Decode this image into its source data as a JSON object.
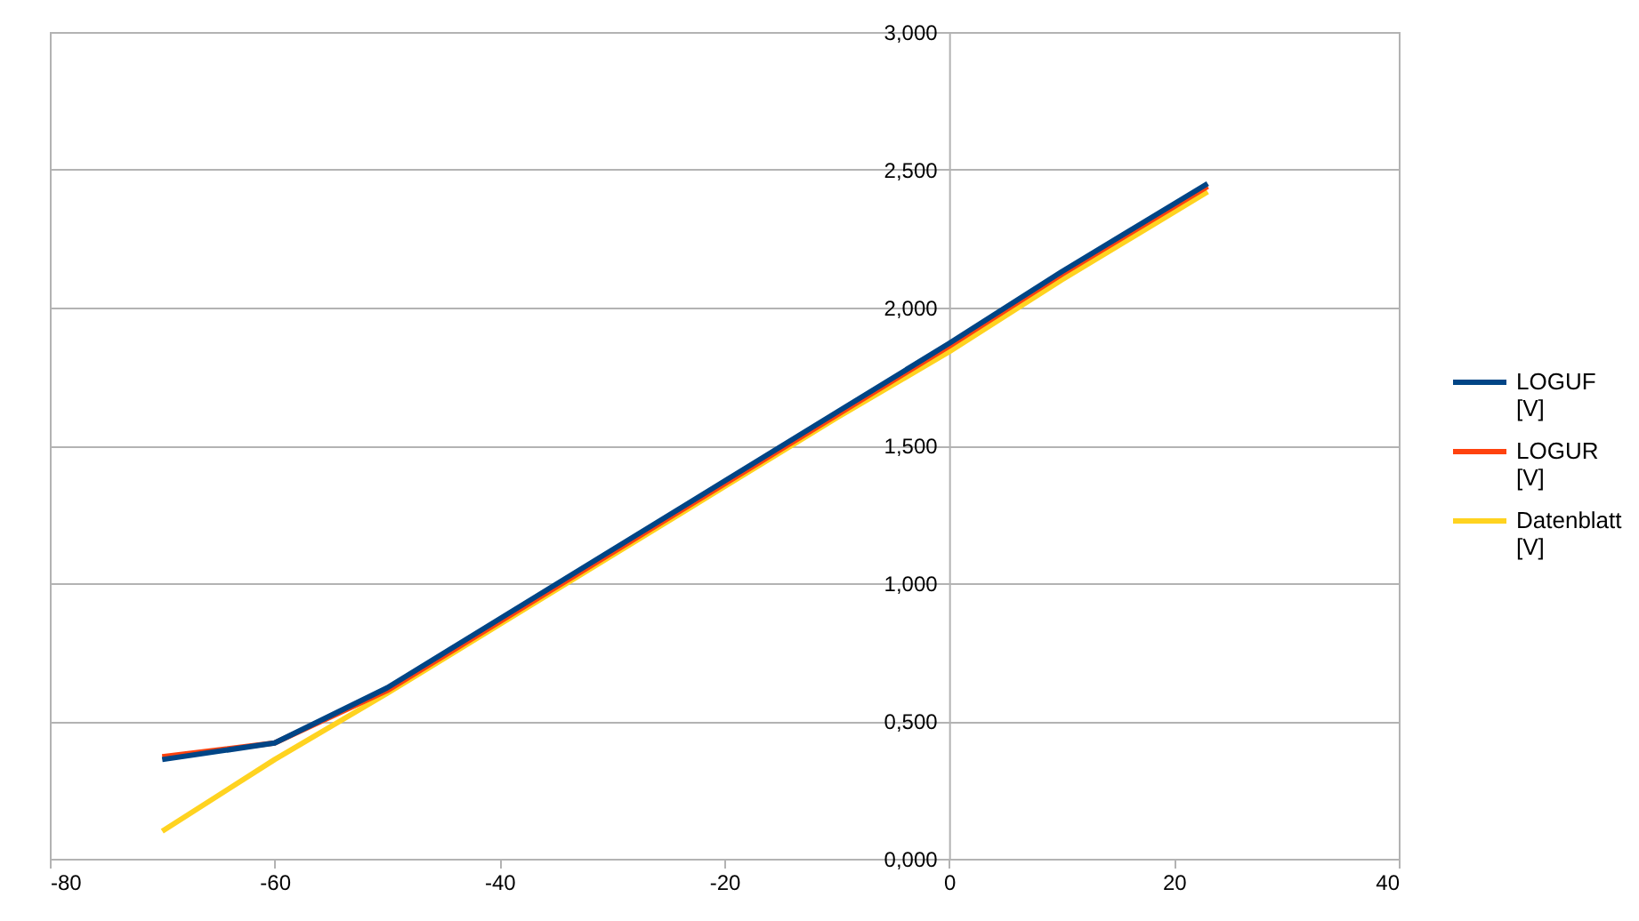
{
  "chart_data": {
    "type": "line",
    "x": [
      -70,
      -60,
      -50,
      -40,
      -30,
      -20,
      -10,
      0,
      10,
      23
    ],
    "series": [
      {
        "name": "LOGUF [V]",
        "color": "#004586",
        "values": [
          0.36,
          0.42,
          0.62,
          0.87,
          1.12,
          1.37,
          1.62,
          1.87,
          2.13,
          2.45
        ]
      },
      {
        "name": "LOGUR [V]",
        "color": "#ff420e",
        "values": [
          0.37,
          0.42,
          0.61,
          0.86,
          1.11,
          1.36,
          1.61,
          1.86,
          2.12,
          2.44
        ]
      },
      {
        "name": "Datenblatt [V]",
        "color": "#ffd320",
        "values": [
          0.1,
          0.36,
          0.6,
          0.85,
          1.1,
          1.35,
          1.6,
          1.84,
          2.1,
          2.42
        ]
      }
    ],
    "xlim": [
      -80,
      40
    ],
    "xticks": [
      -80,
      -60,
      -40,
      -20,
      0,
      20,
      40
    ],
    "ylim": [
      0,
      3
    ],
    "yticks": [
      {
        "value": 0,
        "label": "0,000"
      },
      {
        "value": 0.5,
        "label": "0,500"
      },
      {
        "value": 1,
        "label": "1,000"
      },
      {
        "value": 1.5,
        "label": "1,500"
      },
      {
        "value": 2,
        "label": "2,000"
      },
      {
        "value": 2.5,
        "label": "2,500"
      },
      {
        "value": 3,
        "label": "3,000"
      }
    ],
    "grid": "y",
    "legend": "right",
    "marker": "none",
    "line_style": "solid"
  }
}
